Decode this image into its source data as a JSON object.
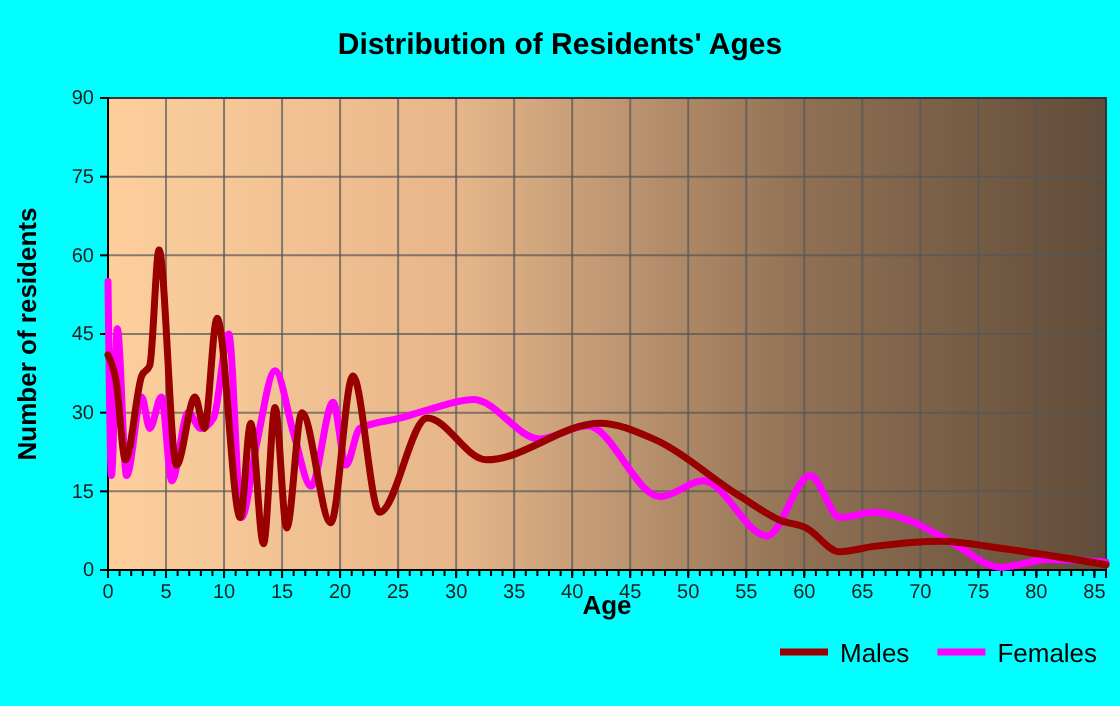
{
  "chart_data": {
    "type": "line",
    "title": "Distribution of Residents' Ages",
    "xlabel": "Age",
    "ylabel": "Number of residents",
    "xlim": [
      0,
      86
    ],
    "xticks": [
      0,
      5,
      10,
      15,
      20,
      25,
      30,
      35,
      40,
      45,
      50,
      55,
      60,
      65,
      70,
      75,
      80,
      85
    ],
    "ylim": [
      0,
      90
    ],
    "yticks": [
      0,
      15,
      30,
      45,
      60,
      75,
      90
    ],
    "grid": true,
    "legend": "bottom",
    "series": [
      {
        "name": "Males",
        "color": "#990000",
        "x": [
          0,
          0.7,
          1.5,
          2.9,
          3.6,
          4.4,
          5.9,
          7.5,
          8.3,
          9.4,
          11.4,
          12.3,
          13.4,
          14.4,
          15.4,
          16.7,
          19.2,
          21.1,
          23.4,
          27.5,
          32.6,
          42.4,
          47,
          54.5,
          57.9,
          60.2,
          63,
          66,
          71.7,
          77.4,
          86
        ],
        "values": [
          41,
          36,
          21,
          37,
          39,
          61,
          20,
          33,
          27,
          48,
          10,
          28,
          5,
          31,
          8,
          30,
          9,
          37,
          11,
          29,
          21,
          28,
          25,
          14,
          9.5,
          8,
          3.5,
          4.5,
          5.5,
          4,
          1
        ]
      },
      {
        "name": "Females",
        "color": "#ff00ff",
        "x": [
          0,
          0.3,
          0.8,
          1.6,
          2.9,
          3.6,
          4.6,
          5.5,
          6.9,
          8,
          9.1,
          10.4,
          11.5,
          12.8,
          14.4,
          16,
          17.5,
          19.4,
          20.5,
          21.7,
          25.2,
          27.5,
          31.5,
          37.2,
          41.3,
          47.6,
          51.3,
          56.8,
          60.5,
          63.1,
          66,
          69,
          72.9,
          76.9,
          81,
          86
        ],
        "values": [
          55,
          18,
          46,
          18,
          33,
          27,
          33,
          17,
          30,
          27,
          29,
          45,
          10,
          24,
          38,
          26,
          16,
          32,
          20,
          27,
          29,
          30.5,
          32.5,
          25,
          27.5,
          14,
          17,
          6.5,
          18,
          10,
          11,
          9.5,
          5,
          0.5,
          2,
          1.5
        ]
      }
    ]
  }
}
